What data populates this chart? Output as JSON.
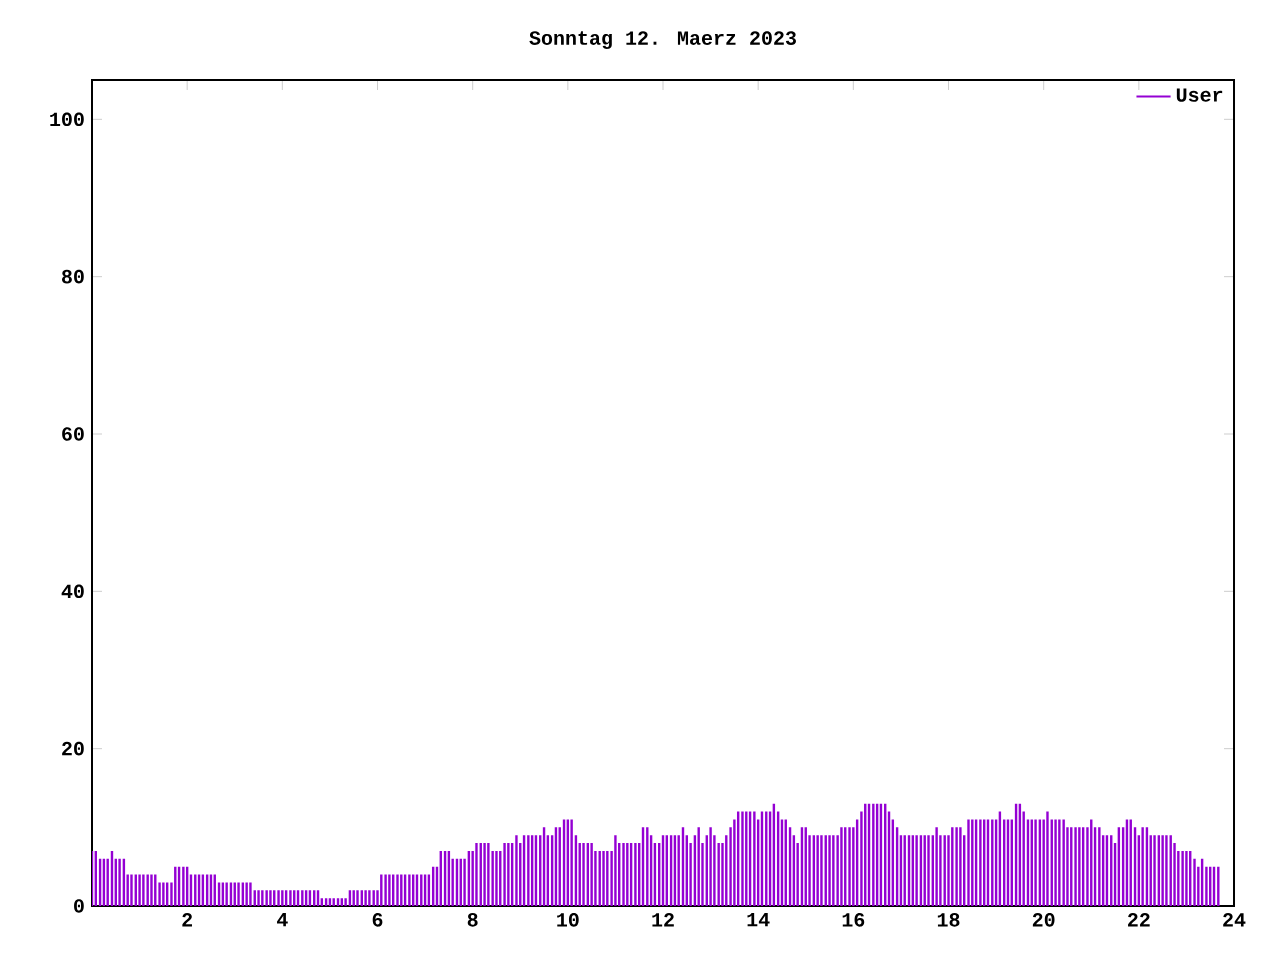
{
  "chart_data": {
    "type": "bar",
    "title": "Sonntag 12. Maerz 2023",
    "x": [
      0,
      0.08,
      0.17,
      0.25,
      0.33,
      0.42,
      0.5,
      0.58,
      0.67,
      0.75,
      0.83,
      0.92,
      1,
      1.08,
      1.17,
      1.25,
      1.33,
      1.42,
      1.5,
      1.58,
      1.67,
      1.75,
      1.83,
      1.92,
      2,
      2.08,
      2.17,
      2.25,
      2.33,
      2.42,
      2.5,
      2.58,
      2.67,
      2.75,
      2.83,
      2.92,
      3,
      3.08,
      3.17,
      3.25,
      3.33,
      3.42,
      3.5,
      3.58,
      3.67,
      3.75,
      3.83,
      3.92,
      4,
      4.08,
      4.17,
      4.25,
      4.33,
      4.42,
      4.5,
      4.58,
      4.67,
      4.75,
      4.83,
      4.92,
      5,
      5.08,
      5.17,
      5.25,
      5.33,
      5.42,
      5.5,
      5.58,
      5.67,
      5.75,
      5.83,
      5.92,
      6,
      6.08,
      6.17,
      6.25,
      6.33,
      6.42,
      6.5,
      6.58,
      6.67,
      6.75,
      6.83,
      6.92,
      7,
      7.08,
      7.17,
      7.25,
      7.33,
      7.42,
      7.5,
      7.58,
      7.67,
      7.75,
      7.83,
      7.92,
      8,
      8.08,
      8.17,
      8.25,
      8.33,
      8.42,
      8.5,
      8.58,
      8.67,
      8.75,
      8.83,
      8.92,
      9,
      9.08,
      9.17,
      9.25,
      9.33,
      9.42,
      9.5,
      9.58,
      9.67,
      9.75,
      9.83,
      9.92,
      10,
      10.08,
      10.17,
      10.25,
      10.33,
      10.42,
      10.5,
      10.58,
      10.67,
      10.75,
      10.83,
      10.92,
      11,
      11.08,
      11.17,
      11.25,
      11.33,
      11.42,
      11.5,
      11.58,
      11.67,
      11.75,
      11.83,
      11.92,
      12,
      12.08,
      12.17,
      12.25,
      12.33,
      12.42,
      12.5,
      12.58,
      12.67,
      12.75,
      12.83,
      12.92,
      13,
      13.08,
      13.17,
      13.25,
      13.33,
      13.42,
      13.5,
      13.58,
      13.67,
      13.75,
      13.83,
      13.92,
      14,
      14.08,
      14.17,
      14.25,
      14.33,
      14.42,
      14.5,
      14.58,
      14.67,
      14.75,
      14.83,
      14.92,
      15,
      15.08,
      15.17,
      15.25,
      15.33,
      15.42,
      15.5,
      15.58,
      15.67,
      15.75,
      15.83,
      15.92,
      16,
      16.08,
      16.17,
      16.25,
      16.33,
      16.42,
      16.5,
      16.58,
      16.67,
      16.75,
      16.83,
      16.92,
      17,
      17.08,
      17.17,
      17.25,
      17.33,
      17.42,
      17.5,
      17.58,
      17.67,
      17.75,
      17.83,
      17.92,
      18,
      18.08,
      18.17,
      18.25,
      18.33,
      18.42,
      18.5,
      18.58,
      18.67,
      18.75,
      18.83,
      18.92,
      19,
      19.08,
      19.17,
      19.25,
      19.33,
      19.42,
      19.5,
      19.58,
      19.67,
      19.75,
      19.83,
      19.92,
      20,
      20.08,
      20.17,
      20.25,
      20.33,
      20.42,
      20.5,
      20.58,
      20.67,
      20.75,
      20.83,
      20.92,
      21,
      21.08,
      21.17,
      21.25,
      21.33,
      21.42,
      21.5,
      21.58,
      21.67,
      21.75,
      21.83,
      21.92,
      22,
      22.08,
      22.17,
      22.25,
      22.33,
      22.42,
      22.5,
      22.58,
      22.67,
      22.75,
      22.83,
      22.92,
      23,
      23.08,
      23.17,
      23.25,
      23.33,
      23.42,
      23.5,
      23.58,
      23.67
    ],
    "series": [
      {
        "name": "User",
        "color": "#9400d3",
        "values": [
          7,
          7,
          6,
          6,
          6,
          7,
          6,
          6,
          6,
          4,
          4,
          4,
          4,
          4,
          4,
          4,
          4,
          3,
          3,
          3,
          3,
          5,
          5,
          5,
          5,
          4,
          4,
          4,
          4,
          4,
          4,
          4,
          3,
          3,
          3,
          3,
          3,
          3,
          3,
          3,
          3,
          2,
          2,
          2,
          2,
          2,
          2,
          2,
          2,
          2,
          2,
          2,
          2,
          2,
          2,
          2,
          2,
          2,
          1,
          1,
          1,
          1,
          1,
          1,
          1,
          2,
          2,
          2,
          2,
          2,
          2,
          2,
          2,
          4,
          4,
          4,
          4,
          4,
          4,
          4,
          4,
          4,
          4,
          4,
          4,
          4,
          5,
          5,
          7,
          7,
          7,
          6,
          6,
          6,
          6,
          7,
          7,
          8,
          8,
          8,
          8,
          7,
          7,
          7,
          8,
          8,
          8,
          9,
          8,
          9,
          9,
          9,
          9,
          9,
          10,
          9,
          9,
          10,
          10,
          11,
          11,
          11,
          9,
          8,
          8,
          8,
          8,
          7,
          7,
          7,
          7,
          7,
          9,
          8,
          8,
          8,
          8,
          8,
          8,
          10,
          10,
          9,
          8,
          8,
          9,
          9,
          9,
          9,
          9,
          10,
          9,
          8,
          9,
          10,
          8,
          9,
          10,
          9,
          8,
          8,
          9,
          10,
          11,
          12,
          12,
          12,
          12,
          12,
          11,
          12,
          12,
          12,
          13,
          12,
          11,
          11,
          10,
          9,
          8,
          10,
          10,
          9,
          9,
          9,
          9,
          9,
          9,
          9,
          9,
          10,
          10,
          10,
          10,
          11,
          12,
          13,
          13,
          13,
          13,
          13,
          13,
          12,
          11,
          10,
          9,
          9,
          9,
          9,
          9,
          9,
          9,
          9,
          9,
          10,
          9,
          9,
          9,
          10,
          10,
          10,
          9,
          11,
          11,
          11,
          11,
          11,
          11,
          11,
          11,
          12,
          11,
          11,
          11,
          13,
          13,
          12,
          11,
          11,
          11,
          11,
          11,
          12,
          11,
          11,
          11,
          11,
          10,
          10,
          10,
          10,
          10,
          10,
          11,
          10,
          10,
          9,
          9,
          9,
          8,
          10,
          10,
          11,
          11,
          10,
          9,
          10,
          10,
          9,
          9,
          9,
          9,
          9,
          9,
          8,
          7,
          7,
          7,
          7,
          6,
          5,
          6,
          5,
          5,
          5,
          5
        ]
      }
    ],
    "xlim": [
      0,
      24
    ],
    "ylim": [
      0,
      105
    ],
    "xticks": [
      2,
      4,
      6,
      8,
      10,
      12,
      14,
      16,
      18,
      20,
      22,
      24
    ],
    "yticks": [
      0,
      20,
      40,
      60,
      80,
      100
    ],
    "legend": "top right"
  }
}
